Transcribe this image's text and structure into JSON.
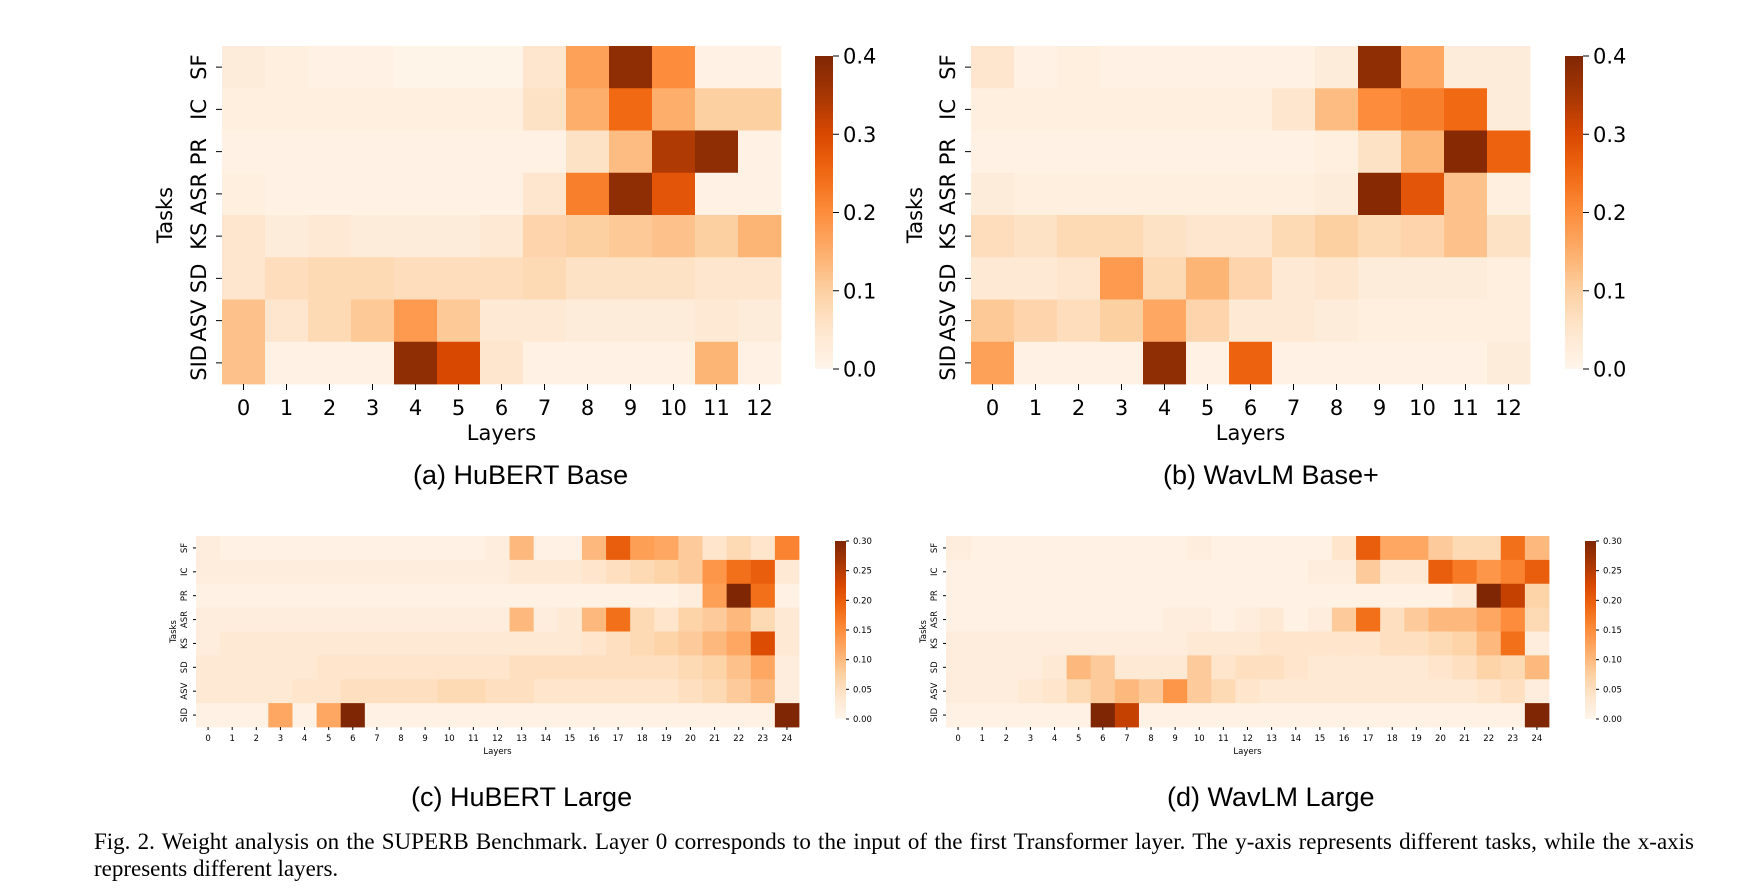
{
  "figure": {
    "caption": "Fig. 2.  Weight analysis on the SUPERB Benchmark. Layer 0 corresponds to the input of the first Transformer layer. The y-axis represents different tasks, while the x-axis represents different layers."
  },
  "colormap": {
    "name": "Oranges",
    "low": "#fff5eb",
    "high": "#7f2704"
  },
  "chart_data": [
    {
      "type": "heatmap",
      "subtitle": "(a) HuBERT Base",
      "xlabel": "Layers",
      "ylabel": "Tasks",
      "x": [
        "0",
        "1",
        "2",
        "3",
        "4",
        "5",
        "6",
        "7",
        "8",
        "9",
        "10",
        "11",
        "12"
      ],
      "y": [
        "SF",
        "IC",
        "PR",
        "ASR",
        "KS",
        "SD",
        "ASV",
        "SID"
      ],
      "vmin": 0.0,
      "vmax": 0.4,
      "colorbar_ticks": [
        "0.0",
        "0.1",
        "0.2",
        "0.3",
        "0.4"
      ],
      "values": [
        [
          0.03,
          0.02,
          0.01,
          0.01,
          0.005,
          0.005,
          0.005,
          0.05,
          0.17,
          0.38,
          0.2,
          0.01,
          0.01
        ],
        [
          0.02,
          0.02,
          0.02,
          0.02,
          0.02,
          0.02,
          0.02,
          0.06,
          0.15,
          0.25,
          0.15,
          0.1,
          0.1
        ],
        [
          0.01,
          0.01,
          0.01,
          0.01,
          0.01,
          0.01,
          0.01,
          0.01,
          0.06,
          0.13,
          0.34,
          0.38,
          0.01
        ],
        [
          0.02,
          0.01,
          0.01,
          0.01,
          0.01,
          0.01,
          0.01,
          0.05,
          0.22,
          0.38,
          0.28,
          0.01,
          0.01
        ],
        [
          0.05,
          0.03,
          0.04,
          0.03,
          0.03,
          0.03,
          0.04,
          0.09,
          0.1,
          0.11,
          0.12,
          0.1,
          0.14
        ],
        [
          0.05,
          0.07,
          0.08,
          0.08,
          0.07,
          0.07,
          0.07,
          0.08,
          0.06,
          0.06,
          0.06,
          0.05,
          0.05
        ],
        [
          0.12,
          0.05,
          0.08,
          0.11,
          0.18,
          0.11,
          0.04,
          0.04,
          0.03,
          0.03,
          0.03,
          0.04,
          0.03
        ],
        [
          0.12,
          0.01,
          0.01,
          0.01,
          0.38,
          0.3,
          0.05,
          0.01,
          0.01,
          0.01,
          0.01,
          0.14,
          0.01
        ]
      ]
    },
    {
      "type": "heatmap",
      "subtitle": "(b) WavLM Base+",
      "xlabel": "Layers",
      "ylabel": "Tasks",
      "x": [
        "0",
        "1",
        "2",
        "3",
        "4",
        "5",
        "6",
        "7",
        "8",
        "9",
        "10",
        "11",
        "12"
      ],
      "y": [
        "SF",
        "IC",
        "PR",
        "ASR",
        "KS",
        "SD",
        "ASV",
        "SID"
      ],
      "vmin": 0.0,
      "vmax": 0.4,
      "colorbar_ticks": [
        "0.0",
        "0.1",
        "0.2",
        "0.3",
        "0.4"
      ],
      "values": [
        [
          0.05,
          0.01,
          0.02,
          0.01,
          0.01,
          0.01,
          0.01,
          0.01,
          0.03,
          0.38,
          0.16,
          0.03,
          0.03
        ],
        [
          0.02,
          0.02,
          0.02,
          0.02,
          0.02,
          0.02,
          0.02,
          0.05,
          0.13,
          0.2,
          0.22,
          0.25,
          0.03
        ],
        [
          0.01,
          0.01,
          0.01,
          0.01,
          0.01,
          0.01,
          0.01,
          0.01,
          0.02,
          0.06,
          0.14,
          0.39,
          0.26
        ],
        [
          0.03,
          0.02,
          0.02,
          0.02,
          0.02,
          0.02,
          0.02,
          0.02,
          0.03,
          0.39,
          0.28,
          0.12,
          0.02
        ],
        [
          0.07,
          0.06,
          0.08,
          0.08,
          0.06,
          0.05,
          0.05,
          0.08,
          0.1,
          0.08,
          0.09,
          0.12,
          0.06
        ],
        [
          0.04,
          0.04,
          0.05,
          0.18,
          0.08,
          0.14,
          0.09,
          0.04,
          0.05,
          0.03,
          0.03,
          0.03,
          0.02
        ],
        [
          0.11,
          0.09,
          0.07,
          0.1,
          0.16,
          0.09,
          0.04,
          0.04,
          0.03,
          0.02,
          0.02,
          0.02,
          0.02
        ],
        [
          0.17,
          0.01,
          0.01,
          0.01,
          0.38,
          0.01,
          0.26,
          0.01,
          0.01,
          0.01,
          0.01,
          0.01,
          0.03
        ]
      ]
    },
    {
      "type": "heatmap",
      "subtitle": "(c) HuBERT Large",
      "xlabel": "Layers",
      "ylabel": "Tasks",
      "x": [
        "0",
        "1",
        "2",
        "3",
        "4",
        "5",
        "6",
        "7",
        "8",
        "9",
        "10",
        "11",
        "12",
        "13",
        "14",
        "15",
        "16",
        "17",
        "18",
        "19",
        "20",
        "21",
        "22",
        "23",
        "24"
      ],
      "y": [
        "SF",
        "IC",
        "PR",
        "ASR",
        "KS",
        "SD",
        "ASV",
        "SID"
      ],
      "vmin": 0.0,
      "vmax": 0.3,
      "colorbar_ticks": [
        "0.00",
        "0.05",
        "0.10",
        "0.15",
        "0.20",
        "0.25",
        "0.30"
      ],
      "values": [
        [
          0.02,
          0.01,
          0.01,
          0.01,
          0.01,
          0.01,
          0.01,
          0.01,
          0.01,
          0.01,
          0.01,
          0.01,
          0.02,
          0.1,
          0.01,
          0.01,
          0.1,
          0.2,
          0.13,
          0.12,
          0.08,
          0.04,
          0.06,
          0.04,
          0.16
        ],
        [
          0.02,
          0.02,
          0.02,
          0.02,
          0.02,
          0.02,
          0.02,
          0.02,
          0.02,
          0.02,
          0.02,
          0.02,
          0.02,
          0.03,
          0.03,
          0.03,
          0.04,
          0.05,
          0.06,
          0.07,
          0.08,
          0.14,
          0.18,
          0.2,
          0.03
        ],
        [
          0.01,
          0.01,
          0.01,
          0.01,
          0.01,
          0.01,
          0.01,
          0.01,
          0.01,
          0.01,
          0.01,
          0.01,
          0.01,
          0.01,
          0.01,
          0.01,
          0.01,
          0.01,
          0.01,
          0.01,
          0.02,
          0.13,
          0.3,
          0.18,
          0.01
        ],
        [
          0.02,
          0.02,
          0.02,
          0.02,
          0.02,
          0.02,
          0.02,
          0.02,
          0.02,
          0.02,
          0.02,
          0.02,
          0.02,
          0.1,
          0.02,
          0.03,
          0.1,
          0.18,
          0.06,
          0.04,
          0.07,
          0.08,
          0.1,
          0.06,
          0.03
        ],
        [
          0.02,
          0.03,
          0.03,
          0.03,
          0.03,
          0.03,
          0.03,
          0.03,
          0.03,
          0.03,
          0.03,
          0.03,
          0.03,
          0.03,
          0.03,
          0.03,
          0.04,
          0.05,
          0.06,
          0.07,
          0.08,
          0.1,
          0.12,
          0.22,
          0.03
        ],
        [
          0.03,
          0.03,
          0.03,
          0.03,
          0.03,
          0.04,
          0.04,
          0.04,
          0.04,
          0.04,
          0.04,
          0.04,
          0.04,
          0.05,
          0.05,
          0.05,
          0.05,
          0.05,
          0.05,
          0.05,
          0.06,
          0.07,
          0.09,
          0.12,
          0.02
        ],
        [
          0.03,
          0.03,
          0.03,
          0.03,
          0.04,
          0.04,
          0.05,
          0.05,
          0.05,
          0.05,
          0.06,
          0.06,
          0.05,
          0.05,
          0.04,
          0.04,
          0.04,
          0.04,
          0.04,
          0.04,
          0.05,
          0.06,
          0.08,
          0.1,
          0.02
        ],
        [
          0.01,
          0.01,
          0.01,
          0.12,
          0.01,
          0.12,
          0.3,
          0.01,
          0.01,
          0.01,
          0.01,
          0.01,
          0.01,
          0.01,
          0.01,
          0.01,
          0.01,
          0.01,
          0.01,
          0.01,
          0.01,
          0.01,
          0.01,
          0.01,
          0.3
        ]
      ]
    },
    {
      "type": "heatmap",
      "subtitle": "(d) WavLM Large",
      "xlabel": "Layers",
      "ylabel": "Tasks",
      "x": [
        "0",
        "1",
        "2",
        "3",
        "4",
        "5",
        "6",
        "7",
        "8",
        "9",
        "10",
        "11",
        "12",
        "13",
        "14",
        "15",
        "16",
        "17",
        "18",
        "19",
        "20",
        "21",
        "22",
        "23",
        "24"
      ],
      "y": [
        "SF",
        "IC",
        "PR",
        "ASR",
        "KS",
        "SD",
        "ASV",
        "SID"
      ],
      "vmin": 0.0,
      "vmax": 0.3,
      "colorbar_ticks": [
        "0.00",
        "0.05",
        "0.10",
        "0.15",
        "0.20",
        "0.25",
        "0.30"
      ],
      "values": [
        [
          0.02,
          0.01,
          0.01,
          0.01,
          0.01,
          0.01,
          0.01,
          0.01,
          0.01,
          0.01,
          0.02,
          0.01,
          0.01,
          0.01,
          0.01,
          0.01,
          0.04,
          0.2,
          0.12,
          0.12,
          0.08,
          0.06,
          0.06,
          0.18,
          0.1
        ],
        [
          0.01,
          0.01,
          0.01,
          0.01,
          0.01,
          0.01,
          0.01,
          0.01,
          0.01,
          0.01,
          0.01,
          0.01,
          0.01,
          0.01,
          0.01,
          0.02,
          0.02,
          0.08,
          0.03,
          0.03,
          0.2,
          0.17,
          0.14,
          0.16,
          0.2
        ],
        [
          0.01,
          0.01,
          0.01,
          0.01,
          0.01,
          0.01,
          0.01,
          0.01,
          0.01,
          0.01,
          0.01,
          0.01,
          0.01,
          0.01,
          0.01,
          0.01,
          0.01,
          0.01,
          0.01,
          0.01,
          0.01,
          0.03,
          0.3,
          0.24,
          0.07
        ],
        [
          0.01,
          0.01,
          0.01,
          0.01,
          0.01,
          0.01,
          0.01,
          0.01,
          0.01,
          0.02,
          0.02,
          0.01,
          0.02,
          0.03,
          0.01,
          0.02,
          0.08,
          0.18,
          0.05,
          0.08,
          0.1,
          0.1,
          0.12,
          0.15,
          0.06
        ],
        [
          0.02,
          0.02,
          0.02,
          0.02,
          0.02,
          0.02,
          0.02,
          0.02,
          0.02,
          0.02,
          0.03,
          0.03,
          0.03,
          0.04,
          0.04,
          0.04,
          0.04,
          0.04,
          0.05,
          0.05,
          0.06,
          0.07,
          0.1,
          0.18,
          0.02
        ],
        [
          0.02,
          0.02,
          0.02,
          0.02,
          0.03,
          0.1,
          0.08,
          0.03,
          0.03,
          0.03,
          0.08,
          0.04,
          0.05,
          0.05,
          0.04,
          0.03,
          0.03,
          0.03,
          0.03,
          0.03,
          0.04,
          0.05,
          0.07,
          0.06,
          0.1
        ],
        [
          0.02,
          0.02,
          0.02,
          0.03,
          0.04,
          0.06,
          0.08,
          0.1,
          0.08,
          0.14,
          0.08,
          0.06,
          0.04,
          0.03,
          0.03,
          0.03,
          0.03,
          0.03,
          0.03,
          0.03,
          0.03,
          0.03,
          0.04,
          0.05,
          0.02
        ],
        [
          0.01,
          0.01,
          0.01,
          0.01,
          0.01,
          0.01,
          0.3,
          0.24,
          0.01,
          0.01,
          0.01,
          0.01,
          0.01,
          0.01,
          0.01,
          0.01,
          0.01,
          0.01,
          0.01,
          0.01,
          0.01,
          0.01,
          0.01,
          0.01,
          0.3
        ]
      ]
    }
  ]
}
